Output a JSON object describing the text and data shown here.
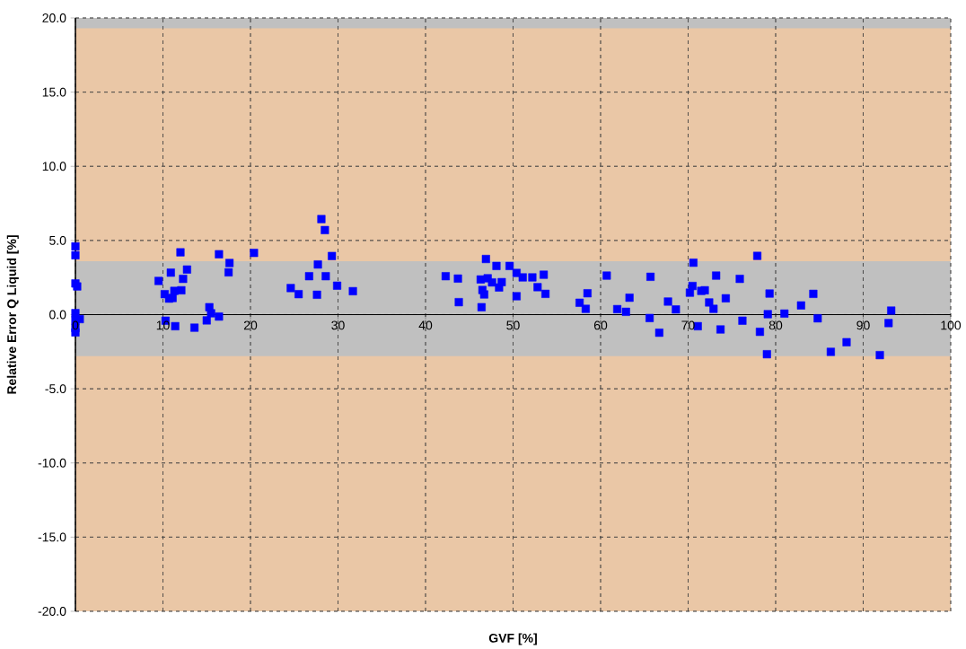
{
  "chart_data": {
    "type": "scatter",
    "xlabel": "GVF [%]",
    "ylabel": "Relative Error Q Liquid [%]",
    "xlim": [
      0,
      100
    ],
    "ylim": [
      -20,
      20
    ],
    "xticks": [
      0,
      10,
      20,
      30,
      40,
      50,
      60,
      70,
      80,
      90,
      100
    ],
    "yticks": [
      {
        "value": -20,
        "label": "-20.0"
      },
      {
        "value": -15,
        "label": "-15.0"
      },
      {
        "value": -10,
        "label": "-10.0"
      },
      {
        "value": -5,
        "label": "-5.0"
      },
      {
        "value": 0,
        "label": "0.0"
      },
      {
        "value": 5,
        "label": "5.0"
      },
      {
        "value": 10,
        "label": "10.0"
      },
      {
        "value": 15,
        "label": "15.0"
      },
      {
        "value": 20,
        "label": "20.0"
      }
    ],
    "grid": true,
    "marker": "square",
    "bands": [
      {
        "axis": "y",
        "from": 3.6,
        "to": 19.3,
        "color": "#eac7a6"
      },
      {
        "axis": "y",
        "from": -20,
        "to": -2.8,
        "color": "#eac7a6"
      }
    ],
    "series": [
      {
        "color": "#0000ff",
        "x": [
          0,
          0,
          0,
          0.2,
          0,
          0,
          0.5,
          0,
          0,
          9.5,
          10.9,
          12.75,
          12.3,
          10.2,
          10.7,
          11.1,
          11.3,
          12.1,
          12.0,
          16.4,
          20.4,
          17.6,
          17.5,
          15.3,
          15.5,
          16.4,
          15.0,
          10.3,
          11.4,
          13.6,
          24.6,
          28.1,
          28.5,
          29.3,
          27.7,
          26.7,
          28.6,
          25.5,
          27.6,
          29.9,
          31.7,
          42.3,
          43.7,
          43.8,
          46.9,
          48.1,
          49.6,
          46.3,
          47.1,
          47.6,
          48.7,
          48.4,
          46.5,
          46.7,
          46.4,
          50.4,
          50.4,
          51.1,
          52.2,
          53.5,
          52.8,
          53.7,
          57.6,
          58.3,
          58.5,
          60.7,
          61.9,
          62.9,
          63.3,
          65.7,
          65.6,
          66.7,
          67.7,
          68.6,
          70.2,
          70.5,
          70.6,
          71.5,
          71.9,
          71.1,
          73.2,
          72.4,
          72.9,
          74.3,
          73.7,
          77.9,
          75.9,
          79.3,
          84.3,
          82.9,
          79.1,
          81.0,
          84.8,
          76.2,
          78.2,
          79.0,
          86.3,
          88.1,
          91.9,
          93.2,
          92.9
        ],
        "values": [
          4.6,
          4.0,
          2.1,
          1.9,
          0.1,
          -0.4,
          -0.3,
          -0.9,
          -1.2,
          2.27,
          2.83,
          3.04,
          2.41,
          1.38,
          1.08,
          1.12,
          1.6,
          1.64,
          4.2,
          4.07,
          4.16,
          3.48,
          2.85,
          0.5,
          0.09,
          -0.13,
          -0.39,
          -0.41,
          -0.78,
          -0.88,
          1.79,
          6.44,
          5.7,
          3.95,
          3.38,
          2.59,
          2.59,
          1.38,
          1.34,
          1.95,
          1.58,
          2.59,
          2.43,
          0.84,
          3.75,
          3.28,
          3.28,
          2.37,
          2.45,
          2.17,
          2.19,
          1.83,
          1.66,
          1.36,
          0.5,
          2.81,
          1.24,
          2.51,
          2.51,
          2.69,
          1.85,
          1.4,
          0.8,
          0.39,
          1.44,
          2.63,
          0.37,
          0.19,
          1.14,
          2.55,
          -0.23,
          -1.22,
          0.88,
          0.35,
          1.48,
          1.93,
          3.5,
          1.6,
          1.64,
          -0.78,
          2.63,
          0.82,
          0.39,
          1.1,
          -1.0,
          3.96,
          2.41,
          1.42,
          1.4,
          0.62,
          0.03,
          0.07,
          -0.25,
          -0.41,
          -1.16,
          -2.67,
          -2.51,
          -1.86,
          -2.73,
          0.27,
          -0.57
        ]
      }
    ]
  }
}
